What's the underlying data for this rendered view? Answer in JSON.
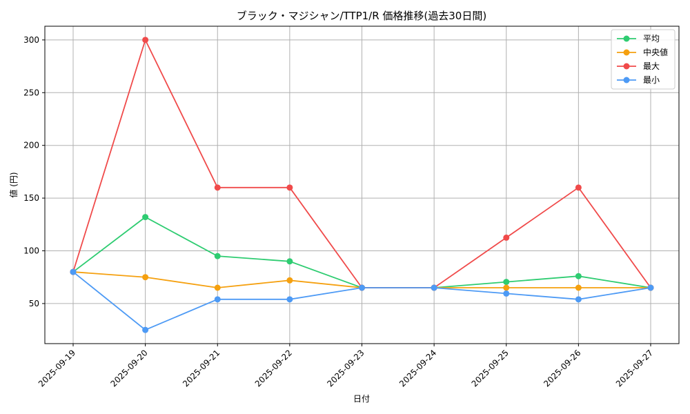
{
  "chart_data": {
    "type": "line",
    "title": "ブラック・マジシャン/TTP1/R 価格推移(過去30日間)",
    "xlabel": "日付",
    "ylabel": "値 (円)",
    "categories": [
      "2025-09-19",
      "2025-09-20",
      "2025-09-21",
      "2025-09-22",
      "2025-09-23",
      "2025-09-24",
      "2025-09-25",
      "2025-09-26",
      "2025-09-27"
    ],
    "ylim": [
      12,
      313
    ],
    "yticks": [
      50,
      100,
      150,
      200,
      250,
      300
    ],
    "grid": true,
    "legend_position": "top-right",
    "series": [
      {
        "name": "平均",
        "color": "#2ecc71",
        "values": [
          80,
          132,
          95,
          90,
          65,
          65,
          70.5,
          76,
          65
        ]
      },
      {
        "name": "中央値",
        "color": "#f5a00f",
        "values": [
          80,
          75,
          65,
          72,
          65,
          65,
          65,
          65,
          65
        ]
      },
      {
        "name": "最大",
        "color": "#f04a4a",
        "values": [
          80,
          300,
          160,
          160,
          65,
          65,
          112.5,
          160,
          65
        ]
      },
      {
        "name": "最小",
        "color": "#4d9af5",
        "values": [
          80,
          25,
          54,
          54,
          65,
          65,
          59.5,
          54,
          65
        ]
      }
    ]
  }
}
